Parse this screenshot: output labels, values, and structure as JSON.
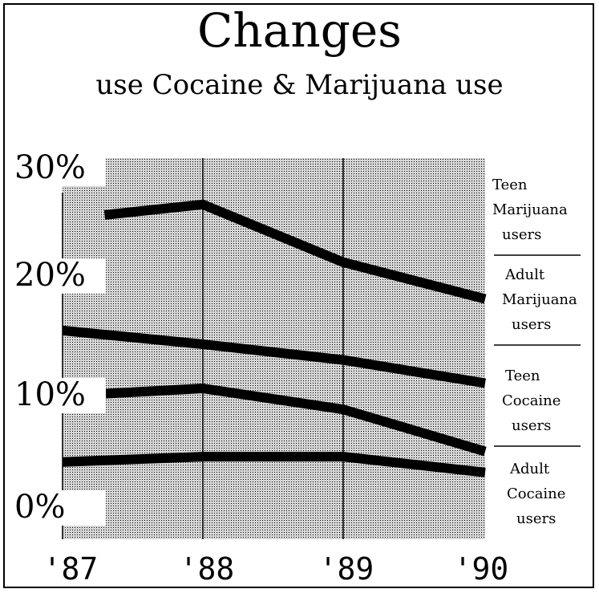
{
  "chart_data": {
    "type": "line",
    "title": "Changes",
    "subtitle": "use Cocaine & Marijuana use",
    "x": [
      "'87",
      "'88",
      "'89",
      "'90"
    ],
    "x_values": [
      1987.0,
      1987.3,
      1988.0,
      1989.0,
      1990.0
    ],
    "y_ticks": [
      "30%",
      "20%",
      "10%",
      "0%"
    ],
    "y_tick_values": [
      30,
      20,
      10,
      0
    ],
    "ylim": [
      0,
      30
    ],
    "grid": true,
    "legend_position": "right",
    "series": [
      {
        "name_lines": [
          "Teen",
          "Marijuana",
          "users"
        ],
        "points": [
          [
            1987.3,
            26.5
          ],
          [
            1988.0,
            27.5
          ],
          [
            1989.0,
            22
          ],
          [
            1990.0,
            18.5
          ]
        ]
      },
      {
        "name_lines": [
          "Adult",
          "Marijuana",
          "users"
        ],
        "points": [
          [
            1987.0,
            15.5
          ],
          [
            1988.0,
            14.2
          ],
          [
            1989.0,
            12.7
          ],
          [
            1990.0,
            10.5
          ]
        ]
      },
      {
        "name_lines": [
          "Teen",
          "Cocaine",
          "users"
        ],
        "points": [
          [
            1987.3,
            9.5
          ],
          [
            1988.0,
            10.0
          ],
          [
            1989.0,
            8.0
          ],
          [
            1990.0,
            4.0
          ]
        ]
      },
      {
        "name_lines": [
          "Adult",
          "Cocaine",
          "users"
        ],
        "points": [
          [
            1987.0,
            3.0
          ],
          [
            1988.0,
            3.5
          ],
          [
            1989.0,
            3.5
          ],
          [
            1990.0,
            2.0
          ]
        ]
      }
    ],
    "colors": {
      "background": "#ffffff",
      "plot_fill": "#b5b5b5",
      "line": "#000000"
    }
  }
}
